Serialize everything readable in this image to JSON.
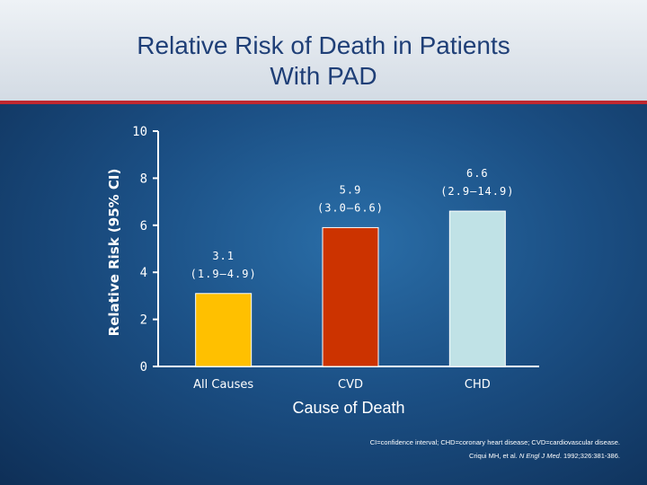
{
  "slide": {
    "title_line1": "Relative Risk of Death in Patients",
    "title_line2": "With PAD"
  },
  "colors": {
    "title_text": "#1f3f77",
    "accent_line": "#c0282f",
    "background": "#1b4f84"
  },
  "chart_data": {
    "type": "bar",
    "categories": [
      "All Causes",
      "CVD",
      "CHD"
    ],
    "values": [
      3.1,
      5.9,
      6.6
    ],
    "data_labels": [
      "3.1\n(1.9–4.9)",
      "5.9\n(3.0–6.6)",
      "6.6\n(2.9–14.9)"
    ],
    "data_labels_line1": [
      "3.1",
      "5.9",
      "6.6"
    ],
    "data_labels_line2": [
      "(1.9–4.9)",
      "(3.0–6.6)",
      "(2.9–14.9)"
    ],
    "bar_colors": [
      "#ffc000",
      "#cc3300",
      "#c0e2e6"
    ],
    "ylabel": "Relative Risk (95% CI)",
    "xlabel": "Cause of Death",
    "ylim": [
      0,
      10
    ],
    "yticks": [
      0,
      2,
      4,
      6,
      8,
      10
    ],
    "grid": false
  },
  "footnote": {
    "line1": "CI=confidence interval; CHD=coronary heart disease; CVD=cardiovascular disease.",
    "line2_prefix": "Criqui MH, et al. ",
    "line2_journal": "N Engl J Med",
    "line2_suffix": ". 1992;326:381-386."
  }
}
